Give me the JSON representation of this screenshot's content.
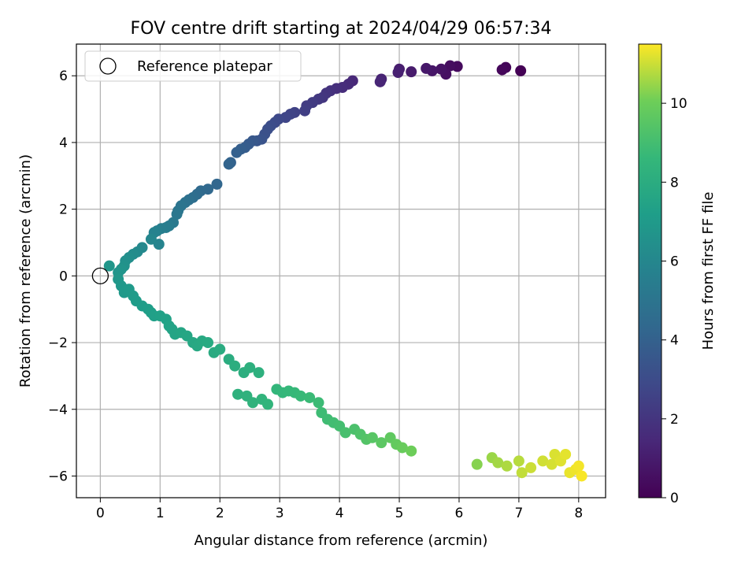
{
  "chart_data": {
    "type": "scatter",
    "title": "FOV centre drift starting at 2024/04/29 06:57:34",
    "xlabel": "Angular distance from reference (arcmin)",
    "ylabel": "Rotation from reference (arcmin)",
    "xlim": [
      -0.4,
      8.45
    ],
    "ylim": [
      -6.65,
      6.95
    ],
    "xticks": [
      0,
      1,
      2,
      3,
      4,
      5,
      6,
      7,
      8
    ],
    "yticks": [
      -6,
      -4,
      -2,
      0,
      2,
      4,
      6
    ],
    "grid": true,
    "legend": {
      "location": "upper-left",
      "entries": [
        "Reference platepar"
      ]
    },
    "reference_point": {
      "name": "Reference platepar",
      "x": 0,
      "y": 0
    },
    "colorbar": {
      "label": "Hours from first FF file",
      "colormap": "viridis",
      "range": [
        0,
        11.5
      ],
      "ticks": [
        0,
        2,
        4,
        6,
        8,
        10
      ]
    },
    "series": [
      {
        "points": [
          [
            7.03,
            6.15,
            0.05
          ],
          [
            6.78,
            6.25,
            0.15
          ],
          [
            6.72,
            6.18,
            0.22
          ],
          [
            5.97,
            6.28,
            0.35
          ],
          [
            5.85,
            6.3,
            0.45
          ],
          [
            5.78,
            6.05,
            0.55
          ],
          [
            5.7,
            6.2,
            0.65
          ],
          [
            5.55,
            6.15,
            0.75
          ],
          [
            5.45,
            6.22,
            0.85
          ],
          [
            5.2,
            6.12,
            0.95
          ],
          [
            5.0,
            6.2,
            1.05
          ],
          [
            4.98,
            6.1,
            1.15
          ],
          [
            4.7,
            5.9,
            1.25
          ],
          [
            4.68,
            5.82,
            1.35
          ],
          [
            4.22,
            5.85,
            1.45
          ],
          [
            4.15,
            5.75,
            1.55
          ],
          [
            4.05,
            5.65,
            1.65
          ],
          [
            3.95,
            5.62,
            1.75
          ],
          [
            3.85,
            5.55,
            1.85
          ],
          [
            3.78,
            5.48,
            1.95
          ],
          [
            3.72,
            5.35,
            2.05
          ],
          [
            3.65,
            5.3,
            2.15
          ],
          [
            3.55,
            5.2,
            2.25
          ],
          [
            3.45,
            5.1,
            2.35
          ],
          [
            3.42,
            4.95,
            2.45
          ],
          [
            3.25,
            4.9,
            2.55
          ],
          [
            3.18,
            4.85,
            2.65
          ],
          [
            3.1,
            4.75,
            2.75
          ],
          [
            2.98,
            4.7,
            2.85
          ],
          [
            2.92,
            4.6,
            2.95
          ],
          [
            2.85,
            4.5,
            3.05
          ],
          [
            2.8,
            4.4,
            3.15
          ],
          [
            2.75,
            4.25,
            3.25
          ],
          [
            2.7,
            4.1,
            3.35
          ],
          [
            2.62,
            4.05,
            3.45
          ],
          [
            2.55,
            4.05,
            3.55
          ],
          [
            2.48,
            3.95,
            3.65
          ],
          [
            2.42,
            3.85,
            3.75
          ],
          [
            2.35,
            3.8,
            3.85
          ],
          [
            2.28,
            3.7,
            3.95
          ],
          [
            2.18,
            3.4,
            4.05
          ],
          [
            2.15,
            3.35,
            4.15
          ],
          [
            1.95,
            2.75,
            4.25
          ],
          [
            1.8,
            2.6,
            4.35
          ],
          [
            1.68,
            2.55,
            4.45
          ],
          [
            1.62,
            2.45,
            4.55
          ],
          [
            1.55,
            2.35,
            4.65
          ],
          [
            1.48,
            2.28,
            4.75
          ],
          [
            1.42,
            2.2,
            4.85
          ],
          [
            1.35,
            2.1,
            4.95
          ],
          [
            1.3,
            1.95,
            5.05
          ],
          [
            1.28,
            1.85,
            5.15
          ],
          [
            1.22,
            1.6,
            5.25
          ],
          [
            1.15,
            1.5,
            5.35
          ],
          [
            1.1,
            1.45,
            5.45
          ],
          [
            1.02,
            1.42,
            5.55
          ],
          [
            0.95,
            1.35,
            5.65
          ],
          [
            0.9,
            1.3,
            5.75
          ],
          [
            0.98,
            0.95,
            5.85
          ],
          [
            0.85,
            1.1,
            5.95
          ],
          [
            0.7,
            0.85,
            6.05
          ],
          [
            0.62,
            0.72,
            6.15
          ],
          [
            0.55,
            0.65,
            6.25
          ],
          [
            0.48,
            0.55,
            6.35
          ],
          [
            0.42,
            0.45,
            6.45
          ],
          [
            0.4,
            0.3,
            6.55
          ],
          [
            0.35,
            0.2,
            6.65
          ],
          [
            0.3,
            0.1,
            6.72
          ],
          [
            0.15,
            0.3,
            6.8
          ],
          [
            0.3,
            -0.1,
            6.85
          ],
          [
            0.35,
            -0.3,
            6.9
          ],
          [
            0.4,
            -0.5,
            6.95
          ],
          [
            0.48,
            -0.4,
            7.0
          ],
          [
            0.55,
            -0.6,
            7.05
          ],
          [
            0.6,
            -0.75,
            7.1
          ],
          [
            0.7,
            -0.9,
            7.15
          ],
          [
            0.8,
            -1.0,
            7.2
          ],
          [
            0.85,
            -1.1,
            7.25
          ],
          [
            0.9,
            -1.2,
            7.3
          ],
          [
            1.0,
            -1.2,
            7.35
          ],
          [
            1.1,
            -1.3,
            7.4
          ],
          [
            1.15,
            -1.5,
            7.45
          ],
          [
            1.2,
            -1.6,
            7.5
          ],
          [
            1.25,
            -1.75,
            7.55
          ],
          [
            1.35,
            -1.7,
            7.6
          ],
          [
            1.45,
            -1.8,
            7.65
          ],
          [
            1.55,
            -2.0,
            7.7
          ],
          [
            1.62,
            -2.1,
            7.75
          ],
          [
            1.7,
            -1.95,
            7.8
          ],
          [
            1.8,
            -2.0,
            7.85
          ],
          [
            1.9,
            -2.3,
            7.9
          ],
          [
            2.0,
            -2.2,
            7.95
          ],
          [
            2.15,
            -2.5,
            8.0
          ],
          [
            2.25,
            -2.7,
            8.05
          ],
          [
            2.4,
            -2.9,
            8.1
          ],
          [
            2.5,
            -2.75,
            8.15
          ],
          [
            2.65,
            -2.9,
            8.2
          ],
          [
            2.3,
            -3.55,
            8.25
          ],
          [
            2.45,
            -3.6,
            8.3
          ],
          [
            2.55,
            -3.8,
            8.35
          ],
          [
            2.7,
            -3.7,
            8.4
          ],
          [
            2.8,
            -3.85,
            8.45
          ],
          [
            2.95,
            -3.4,
            8.5
          ],
          [
            3.05,
            -3.5,
            8.55
          ],
          [
            3.15,
            -3.45,
            8.6
          ],
          [
            3.25,
            -3.5,
            8.65
          ],
          [
            3.35,
            -3.6,
            8.7
          ],
          [
            3.5,
            -3.65,
            8.75
          ],
          [
            3.65,
            -3.8,
            8.8
          ],
          [
            3.7,
            -4.1,
            8.85
          ],
          [
            3.8,
            -4.3,
            8.9
          ],
          [
            3.9,
            -4.4,
            8.95
          ],
          [
            4.0,
            -4.5,
            9.0
          ],
          [
            4.1,
            -4.7,
            9.1
          ],
          [
            4.25,
            -4.6,
            9.2
          ],
          [
            4.35,
            -4.75,
            9.3
          ],
          [
            4.45,
            -4.9,
            9.4
          ],
          [
            4.55,
            -4.85,
            9.5
          ],
          [
            4.7,
            -5.0,
            9.6
          ],
          [
            4.85,
            -4.85,
            9.7
          ],
          [
            4.95,
            -5.05,
            9.8
          ],
          [
            5.05,
            -5.15,
            9.9
          ],
          [
            5.2,
            -5.25,
            10.0
          ],
          [
            6.3,
            -5.65,
            10.3
          ],
          [
            6.55,
            -5.45,
            10.5
          ],
          [
            6.65,
            -5.6,
            10.6
          ],
          [
            6.8,
            -5.7,
            10.7
          ],
          [
            7.0,
            -5.55,
            10.8
          ],
          [
            7.05,
            -5.9,
            10.9
          ],
          [
            7.2,
            -5.75,
            11.0
          ],
          [
            7.4,
            -5.55,
            11.05
          ],
          [
            7.55,
            -5.65,
            11.1
          ],
          [
            7.6,
            -5.35,
            11.15
          ],
          [
            7.7,
            -5.55,
            11.2
          ],
          [
            7.78,
            -5.35,
            11.25
          ],
          [
            7.85,
            -5.9,
            11.3
          ],
          [
            7.95,
            -5.8,
            11.35
          ],
          [
            8.0,
            -5.7,
            11.4
          ],
          [
            8.05,
            -6.0,
            11.45
          ]
        ]
      }
    ]
  }
}
